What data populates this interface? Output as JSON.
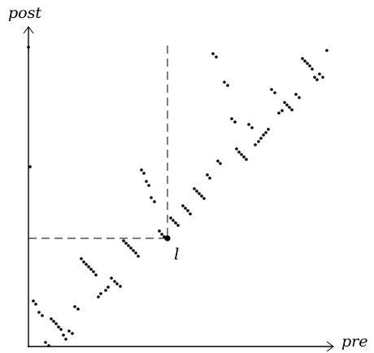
{
  "diagram": {
    "y_axis_label": "post",
    "x_axis_label": "pre",
    "point_label": "l",
    "highlighted_point": {
      "pre": 206,
      "post": 293
    }
  },
  "chart_data": {
    "type": "scatter",
    "xlabel": "pre",
    "ylabel": "post",
    "xlim": [
      35,
      410
    ],
    "ylim": [
      425,
      35
    ],
    "grid": false,
    "annotations": [
      {
        "text": "l",
        "pre": 206,
        "post": 293,
        "guides": "dashed-to-both-axes"
      }
    ],
    "points": [
      [
        35,
        58
      ],
      [
        37,
        205
      ],
      [
        41,
        370
      ],
      [
        44,
        374
      ],
      [
        48,
        384
      ],
      [
        52,
        388
      ],
      [
        56,
        421
      ],
      [
        60,
        425
      ],
      [
        63,
        392
      ],
      [
        66,
        395
      ],
      [
        69,
        398
      ],
      [
        72,
        402
      ],
      [
        75,
        405
      ],
      [
        78,
        412
      ],
      [
        81,
        417
      ],
      [
        85,
        407
      ],
      [
        89,
        410
      ],
      [
        92,
        377
      ],
      [
        96,
        380
      ],
      [
        100,
        318
      ],
      [
        103,
        322
      ],
      [
        106,
        325
      ],
      [
        109,
        328
      ],
      [
        112,
        331
      ],
      [
        115,
        334
      ],
      [
        118,
        338
      ],
      [
        121,
        365
      ],
      [
        124,
        361
      ],
      [
        130,
        357
      ],
      [
        133,
        353
      ],
      [
        137,
        342
      ],
      [
        141,
        346
      ],
      [
        144,
        349
      ],
      [
        148,
        352
      ],
      [
        152,
        296
      ],
      [
        155,
        299
      ],
      [
        158,
        302
      ],
      [
        161,
        305
      ],
      [
        164,
        308
      ],
      [
        167,
        311
      ],
      [
        170,
        315
      ],
      [
        174,
        209
      ],
      [
        177,
        213
      ],
      [
        180,
        223
      ],
      [
        183,
        228
      ],
      [
        186,
        243
      ],
      [
        190,
        248
      ],
      [
        196,
        284
      ],
      [
        199,
        288
      ],
      [
        202,
        291
      ],
      [
        206,
        293
      ],
      [
        210,
        268
      ],
      [
        213,
        271
      ],
      [
        216,
        274
      ],
      [
        219,
        277
      ],
      [
        225,
        253
      ],
      [
        228,
        256
      ],
      [
        231,
        259
      ],
      [
        234,
        263
      ],
      [
        239,
        232
      ],
      [
        242,
        235
      ],
      [
        245,
        238
      ],
      [
        248,
        241
      ],
      [
        251,
        244
      ],
      [
        255,
        215
      ],
      [
        258,
        219
      ],
      [
        262,
        66
      ],
      [
        266,
        70
      ],
      [
        268,
        198
      ],
      [
        271,
        201
      ],
      [
        276,
        101
      ],
      [
        280,
        105
      ],
      [
        285,
        146
      ],
      [
        289,
        150
      ],
      [
        291,
        183
      ],
      [
        294,
        187
      ],
      [
        297,
        190
      ],
      [
        300,
        193
      ],
      [
        303,
        196
      ],
      [
        306,
        153
      ],
      [
        310,
        157
      ],
      [
        314,
        178
      ],
      [
        318,
        174
      ],
      [
        321,
        170
      ],
      [
        324,
        166
      ],
      [
        327,
        163
      ],
      [
        330,
        159
      ],
      [
        334,
        110
      ],
      [
        338,
        114
      ],
      [
        343,
        139
      ],
      [
        347,
        136
      ],
      [
        350,
        126
      ],
      [
        353,
        129
      ],
      [
        356,
        132
      ],
      [
        359,
        135
      ],
      [
        364,
        116
      ],
      [
        368,
        120
      ],
      [
        372,
        72
      ],
      [
        375,
        75
      ],
      [
        378,
        78
      ],
      [
        381,
        81
      ],
      [
        384,
        85
      ],
      [
        387,
        95
      ],
      [
        390,
        98
      ],
      [
        393,
        91
      ],
      [
        397,
        95
      ],
      [
        402,
        62
      ]
    ]
  }
}
